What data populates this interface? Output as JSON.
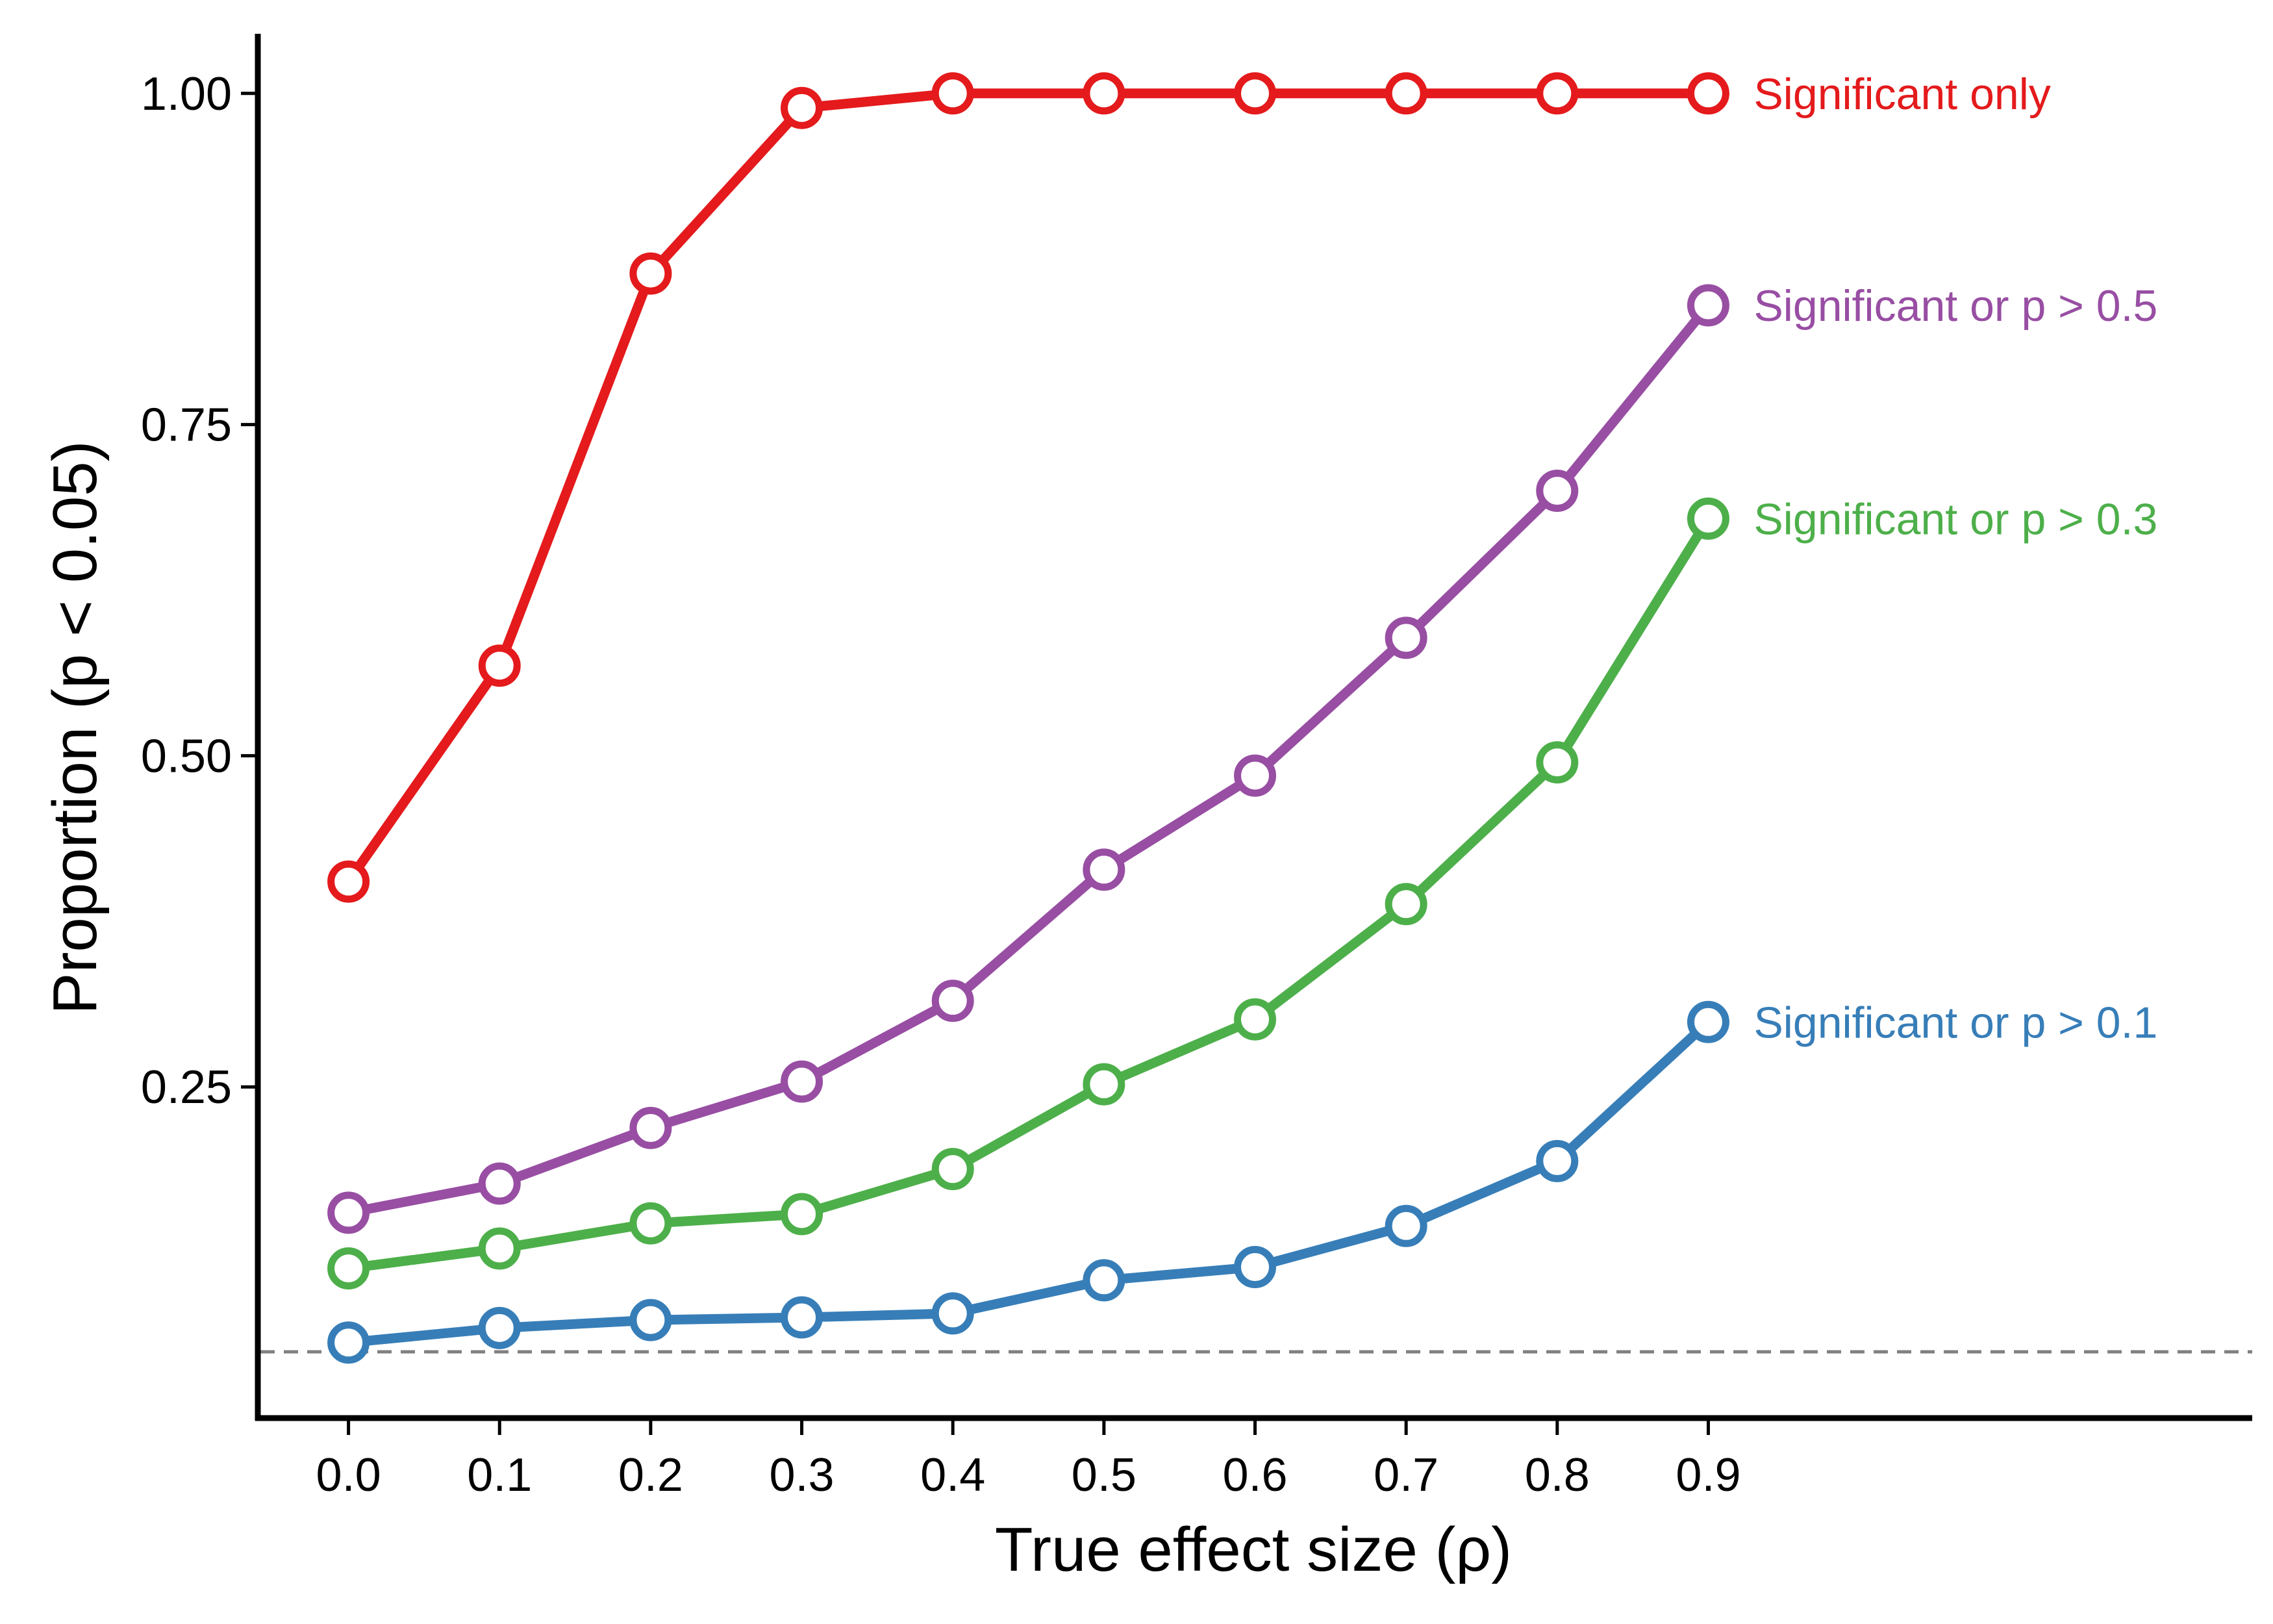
{
  "chart_data": {
    "type": "line",
    "xlabel": "True effect size (ρ)",
    "ylabel": "Proportion (p < 0.05)",
    "x": [
      0.0,
      0.1,
      0.2,
      0.3,
      0.4,
      0.5,
      0.6,
      0.7,
      0.8,
      0.9
    ],
    "x_tick_labels": [
      "0.0",
      "0.1",
      "0.2",
      "0.3",
      "0.4",
      "0.5",
      "0.6",
      "0.7",
      "0.8",
      "0.9"
    ],
    "y_ticks": [
      0.25,
      0.5,
      0.75,
      1.0
    ],
    "y_tick_labels": [
      "0.25",
      "0.50",
      "0.75",
      "1.00"
    ],
    "xlim": [
      -0.06,
      1.26
    ],
    "ylim": [
      0.0,
      1.045
    ],
    "grid": false,
    "legend": "direct labels at line ends",
    "reference_line": {
      "y": 0.05,
      "style": "dashed",
      "color": "#808080"
    },
    "series": [
      {
        "name": "Significant only",
        "color": "#E41A1C",
        "values": [
          0.405,
          0.568,
          0.864,
          0.989,
          1.0,
          1.0,
          1.0,
          1.0,
          1.0,
          1.0
        ]
      },
      {
        "name": "Significant or p > 0.5",
        "color": "#984EA3",
        "values": [
          0.155,
          0.177,
          0.219,
          0.254,
          0.315,
          0.414,
          0.485,
          0.589,
          0.7,
          0.84
        ]
      },
      {
        "name": "Significant or p > 0.3",
        "color": "#4DAF4A",
        "values": [
          0.113,
          0.128,
          0.147,
          0.154,
          0.188,
          0.252,
          0.301,
          0.388,
          0.495,
          0.679
        ]
      },
      {
        "name": "Significant or p > 0.1",
        "color": "#377EB8",
        "values": [
          0.057,
          0.068,
          0.074,
          0.076,
          0.079,
          0.104,
          0.114,
          0.145,
          0.194,
          0.299
        ]
      }
    ]
  }
}
